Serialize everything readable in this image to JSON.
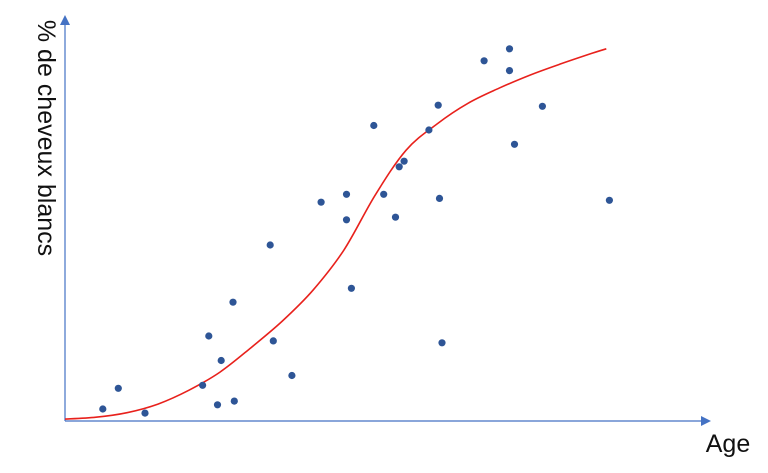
{
  "chart_data": {
    "type": "scatter",
    "title": "",
    "xlabel": "Age",
    "ylabel": "% de cheveux blancs",
    "xlim": [
      0,
      100
    ],
    "ylim": [
      0,
      100
    ],
    "grid": false,
    "ticks": false,
    "colors": {
      "axis": "#4472c4",
      "point": "#2e5596",
      "curve": "#e8211c"
    },
    "points": [
      {
        "x": 6.1,
        "y": 3.2
      },
      {
        "x": 8.6,
        "y": 8.7
      },
      {
        "x": 12.9,
        "y": 2.1
      },
      {
        "x": 22.2,
        "y": 9.5
      },
      {
        "x": 23.2,
        "y": 22.6
      },
      {
        "x": 24.6,
        "y": 4.3
      },
      {
        "x": 25.2,
        "y": 16.1
      },
      {
        "x": 27.1,
        "y": 31.6
      },
      {
        "x": 27.3,
        "y": 5.3
      },
      {
        "x": 33.1,
        "y": 46.8
      },
      {
        "x": 33.6,
        "y": 21.3
      },
      {
        "x": 36.6,
        "y": 12.1
      },
      {
        "x": 41.3,
        "y": 58.2
      },
      {
        "x": 45.4,
        "y": 60.3
      },
      {
        "x": 45.4,
        "y": 53.5
      },
      {
        "x": 46.2,
        "y": 35.3
      },
      {
        "x": 49.8,
        "y": 78.6
      },
      {
        "x": 51.4,
        "y": 60.3
      },
      {
        "x": 53.3,
        "y": 54.2
      },
      {
        "x": 53.9,
        "y": 67.6
      },
      {
        "x": 54.7,
        "y": 69.1
      },
      {
        "x": 58.7,
        "y": 77.4
      },
      {
        "x": 60.2,
        "y": 84.0
      },
      {
        "x": 60.4,
        "y": 59.2
      },
      {
        "x": 60.8,
        "y": 20.8
      },
      {
        "x": 67.6,
        "y": 95.8
      },
      {
        "x": 71.7,
        "y": 99.0
      },
      {
        "x": 71.7,
        "y": 93.2
      },
      {
        "x": 72.5,
        "y": 73.6
      },
      {
        "x": 77.0,
        "y": 83.7
      },
      {
        "x": 87.8,
        "y": 58.7
      }
    ],
    "trend_curve": {
      "type": "sigmoid",
      "x": [
        0,
        5,
        10,
        15,
        20,
        25,
        30,
        35,
        40,
        45,
        50,
        55,
        60,
        65,
        70,
        75,
        80,
        85,
        87.3
      ],
      "y": [
        0.5,
        1.0,
        2.2,
        4.5,
        8.2,
        13.0,
        19.5,
        26.5,
        34.8,
        45.5,
        60.0,
        72.0,
        79.0,
        84.5,
        88.5,
        92.0,
        95.0,
        97.8,
        99.0
      ]
    }
  }
}
